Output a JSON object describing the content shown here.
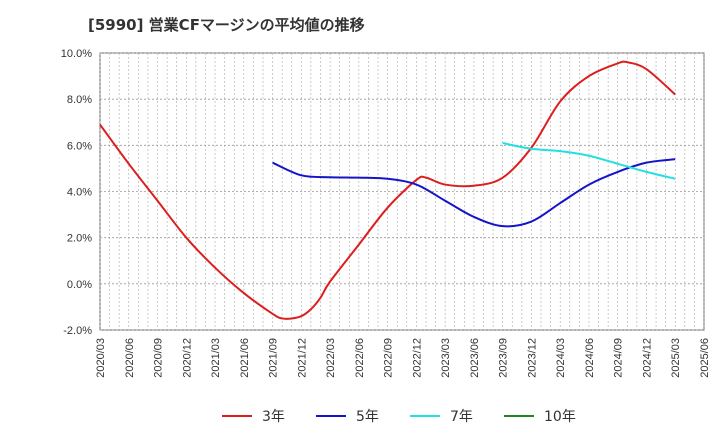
{
  "title": "[5990]  営業CFマージンの平均値の推移",
  "chart_data": {
    "type": "line",
    "ylim": [
      -2.0,
      10.0
    ],
    "yticks": [
      "-2.0%",
      "0.0%",
      "2.0%",
      "4.0%",
      "6.0%",
      "8.0%",
      "10.0%"
    ],
    "ytick_values": [
      -2,
      0,
      2,
      4,
      6,
      8,
      10
    ],
    "xticks": [
      "2020/03",
      "2020/06",
      "2020/09",
      "2020/12",
      "2021/03",
      "2021/06",
      "2021/09",
      "2021/12",
      "2022/03",
      "2022/06",
      "2022/09",
      "2022/12",
      "2023/03",
      "2023/06",
      "2023/09",
      "2023/12",
      "2024/03",
      "2024/06",
      "2024/09",
      "2024/12",
      "2025/03",
      "2025/06"
    ],
    "grid": true,
    "legend_position": "bottom",
    "series": [
      {
        "name": "3年",
        "color": "#dd1e1e",
        "x": [
          "2020/03",
          "2020/06",
          "2020/09",
          "2020/12",
          "2021/03",
          "2021/06",
          "2021/09",
          "2021/10",
          "2021/11",
          "2021/12",
          "2022/01",
          "2022/02",
          "2022/03",
          "2022/06",
          "2022/09",
          "2022/12",
          "2023/01",
          "2023/03",
          "2023/06",
          "2023/09",
          "2023/12",
          "2024/03",
          "2024/06",
          "2024/09",
          "2024/10",
          "2024/12",
          "2025/03"
        ],
        "values": [
          6.9,
          5.2,
          3.6,
          2.0,
          0.7,
          -0.4,
          -1.3,
          -1.5,
          -1.5,
          -1.4,
          -1.1,
          -0.6,
          0.1,
          1.7,
          3.3,
          4.5,
          4.6,
          4.3,
          4.25,
          4.6,
          5.9,
          7.9,
          9.0,
          9.55,
          9.6,
          9.3,
          8.2
        ]
      },
      {
        "name": "5年",
        "color": "#1414c8",
        "x": [
          "2021/09",
          "2021/12",
          "2022/03",
          "2022/06",
          "2022/09",
          "2022/12",
          "2023/03",
          "2023/06",
          "2023/09",
          "2023/12",
          "2024/03",
          "2024/06",
          "2024/09",
          "2024/12",
          "2025/03"
        ],
        "values": [
          5.25,
          4.7,
          4.62,
          4.6,
          4.55,
          4.3,
          3.6,
          2.9,
          2.5,
          2.7,
          3.5,
          4.3,
          4.85,
          5.25,
          5.4
        ]
      },
      {
        "name": "7年",
        "color": "#22e0e0",
        "x": [
          "2023/09",
          "2023/12",
          "2024/03",
          "2024/06",
          "2024/09",
          "2024/12",
          "2025/03"
        ],
        "values": [
          6.1,
          5.85,
          5.75,
          5.55,
          5.2,
          4.85,
          4.55
        ]
      },
      {
        "name": "10年",
        "color": "#1a8a1a",
        "x": [],
        "values": []
      }
    ]
  }
}
